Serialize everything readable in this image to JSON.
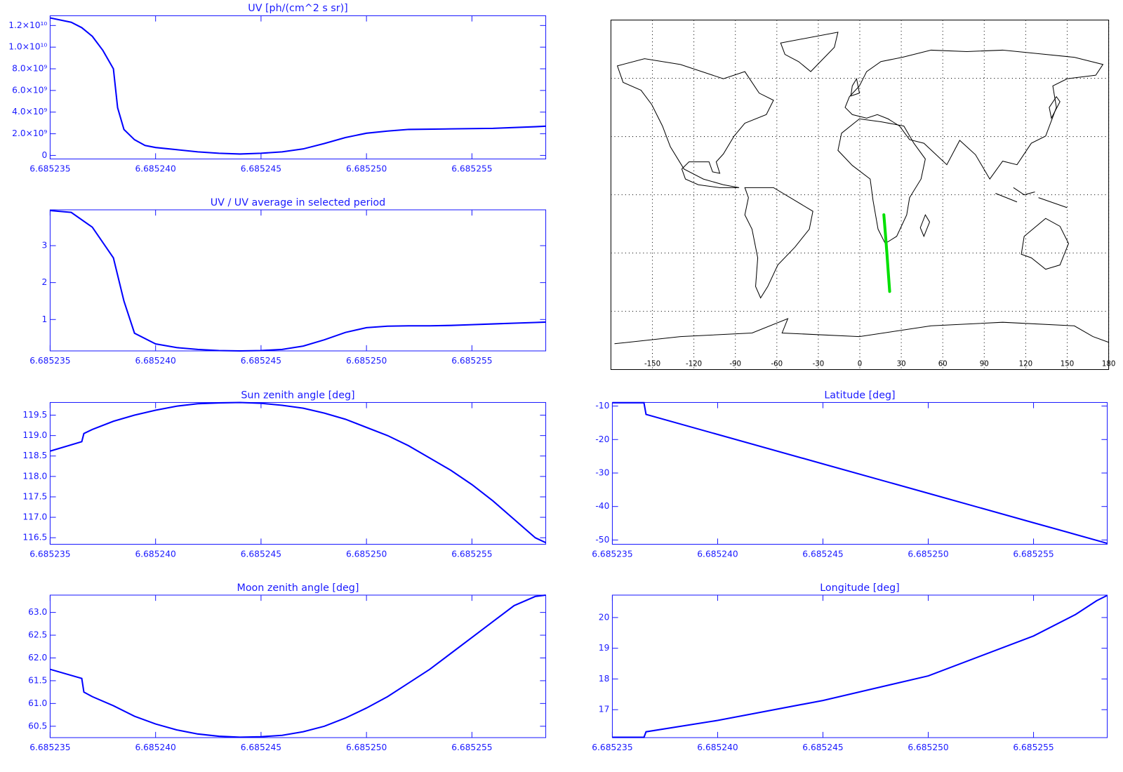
{
  "chart_data": [
    {
      "type": "line",
      "title": "UV [ph/(cm^2 s sr)]",
      "color": "#0000ff",
      "x": [
        6.685235,
        6.6852355,
        6.685236,
        6.6852365,
        6.685237,
        6.6852375,
        6.685238,
        6.6852382,
        6.6852385,
        6.685239,
        6.6852395,
        6.68524,
        6.685241,
        6.685242,
        6.685243,
        6.685244,
        6.685245,
        6.685246,
        6.685247,
        6.685248,
        6.685249,
        6.68525,
        6.685251,
        6.685252,
        6.685254,
        6.685256,
        6.685258,
        6.6852585
      ],
      "values": [
        12700000000.0,
        12500000000.0,
        12300000000.0,
        11800000000.0,
        11000000000.0,
        9700000000.0,
        8000000000.0,
        4400000000.0,
        2400000000.0,
        1450000000.0,
        920000000.0,
        730000000.0,
        530000000.0,
        330000000.0,
        200000000.0,
        130000000.0,
        200000000.0,
        330000000.0,
        600000000.0,
        1100000000.0,
        1650000000.0,
        2050000000.0,
        2250000000.0,
        2400000000.0,
        2450000000.0,
        2500000000.0,
        2650000000.0,
        2700000000.0
      ],
      "xlim": [
        6.685235,
        6.6852585
      ],
      "ylim": [
        -330000000.0,
        12900000000.0
      ],
      "xticks": [
        6.685235,
        {
          "value": 6.68524,
          "label": "6.685240"
        },
        6.685245,
        {
          "value": 6.68525,
          "label": "6.685250"
        },
        6.685255
      ],
      "yticks": [
        0,
        {
          "value": 2000000000.0,
          "label": "2.0×10⁹"
        },
        {
          "value": 4000000000.0,
          "label": "4.0×10⁹"
        },
        {
          "value": 6000000000.0,
          "label": "6.0×10⁹"
        },
        {
          "value": 8000000000.0,
          "label": "8.0×10⁹"
        },
        {
          "value": 10000000000.0,
          "label": "1.0×10¹⁰"
        },
        {
          "value": 12000000000.0,
          "label": "1.2×10¹⁰"
        }
      ]
    },
    {
      "type": "line",
      "title": "UV / UV average in selected period",
      "color": "#0000ff",
      "x": [
        6.685235,
        6.685236,
        6.685237,
        6.685238,
        6.6852385,
        6.685239,
        6.68524,
        6.685241,
        6.685242,
        6.685243,
        6.685244,
        6.685245,
        6.685246,
        6.685247,
        6.685248,
        6.685249,
        6.68525,
        6.685251,
        6.685252,
        6.685253,
        6.685254,
        6.685255,
        6.685256,
        6.685257,
        6.685258,
        6.6852585
      ],
      "values": [
        3.95,
        3.9,
        3.5,
        2.67,
        1.5,
        0.63,
        0.34,
        0.24,
        0.19,
        0.16,
        0.15,
        0.16,
        0.19,
        0.28,
        0.45,
        0.65,
        0.78,
        0.82,
        0.83,
        0.83,
        0.84,
        0.86,
        0.88,
        0.9,
        0.92,
        0.93
      ],
      "xlim": [
        6.685235,
        6.6852585
      ],
      "ylim": [
        0.15,
        3.97
      ],
      "xticks": [
        6.685235,
        {
          "value": 6.68524,
          "label": "6.685240"
        },
        6.685245,
        {
          "value": 6.68525,
          "label": "6.685250"
        },
        6.685255
      ],
      "yticks": [
        1,
        2,
        3
      ]
    },
    {
      "type": "line",
      "title": "Sun zenith angle [deg]",
      "color": "#0000ff",
      "x": [
        6.685235,
        6.6852365,
        6.6852366,
        6.685237,
        6.685238,
        6.685239,
        6.68524,
        6.685241,
        6.685242,
        6.685243,
        6.685244,
        6.685245,
        6.685246,
        6.685247,
        6.685248,
        6.685249,
        6.68525,
        6.685251,
        6.685252,
        6.685253,
        6.685254,
        6.685255,
        6.685256,
        6.685257,
        6.685258,
        6.6852585
      ],
      "values": [
        118.62,
        118.85,
        119.05,
        119.15,
        119.35,
        119.5,
        119.62,
        119.72,
        119.78,
        119.8,
        119.81,
        119.79,
        119.74,
        119.67,
        119.55,
        119.4,
        119.2,
        119.0,
        118.75,
        118.45,
        118.15,
        117.8,
        117.4,
        116.95,
        116.5,
        116.38
      ],
      "xlim": [
        6.685235,
        6.6852585
      ],
      "ylim": [
        116.34,
        119.81
      ],
      "xticks": [
        6.685235,
        {
          "value": 6.68524,
          "label": "6.685240"
        },
        6.685245,
        {
          "value": 6.68525,
          "label": "6.685250"
        },
        6.685255
      ],
      "yticks": [
        116.5,
        {
          "value": 117,
          "label": "117.0"
        },
        117.5,
        {
          "value": 118,
          "label": "118.0"
        },
        118.5,
        {
          "value": 119,
          "label": "119.0"
        },
        119.5
      ]
    },
    {
      "type": "line",
      "title": "Moon zenith angle [deg]",
      "color": "#0000ff",
      "x": [
        6.685235,
        6.6852365,
        6.6852366,
        6.685237,
        6.685238,
        6.685239,
        6.68524,
        6.685241,
        6.685242,
        6.685243,
        6.685244,
        6.685245,
        6.685246,
        6.685247,
        6.685248,
        6.685249,
        6.68525,
        6.685251,
        6.685252,
        6.685253,
        6.685254,
        6.685255,
        6.685256,
        6.685257,
        6.685258,
        6.6852585
      ],
      "values": [
        61.75,
        61.55,
        61.25,
        61.15,
        60.95,
        60.72,
        60.55,
        60.42,
        60.33,
        60.28,
        60.26,
        60.27,
        60.3,
        60.38,
        60.5,
        60.68,
        60.9,
        61.15,
        61.45,
        61.75,
        62.1,
        62.45,
        62.8,
        63.15,
        63.35,
        63.38
      ],
      "xlim": [
        6.685235,
        6.6852585
      ],
      "ylim": [
        60.25,
        63.38
      ],
      "xticks": [
        6.685235,
        {
          "value": 6.68524,
          "label": "6.685240"
        },
        6.685245,
        {
          "value": 6.68525,
          "label": "6.685250"
        },
        6.685255
      ],
      "yticks": [
        60.5,
        {
          "value": 61,
          "label": "61.0"
        },
        61.5,
        {
          "value": 62,
          "label": "62.0"
        },
        62.5,
        {
          "value": 63,
          "label": "63.0"
        }
      ]
    },
    {
      "type": "line",
      "title": "Latitude [deg]",
      "color": "#0000ff",
      "x": [
        6.685235,
        6.6852365,
        6.6852366,
        6.68524,
        6.685245,
        6.68525,
        6.685255,
        6.6852585
      ],
      "values": [
        -9,
        -9,
        -12.5,
        -18.48,
        -27.27,
        -36.06,
        -44.85,
        -51
      ],
      "xlim": [
        6.685235,
        6.6852585
      ],
      "ylim": [
        -51.28,
        -8.93
      ],
      "xticks": [
        6.685235,
        {
          "value": 6.68524,
          "label": "6.685240"
        },
        6.685245,
        {
          "value": 6.68525,
          "label": "6.685250"
        },
        6.685255
      ],
      "yticks": [
        -50,
        -40,
        -30,
        -20,
        -10
      ]
    },
    {
      "type": "line",
      "title": "Longitude [deg]",
      "color": "#0000ff",
      "x": [
        6.685235,
        6.6852365,
        6.6852366,
        6.68524,
        6.685245,
        6.68525,
        6.685255,
        6.685257,
        6.685258,
        6.6852585
      ],
      "values": [
        16.1,
        16.1,
        16.28,
        16.65,
        17.3,
        18.1,
        19.4,
        20.1,
        20.55,
        20.72
      ],
      "xlim": [
        6.685235,
        6.6852585
      ],
      "ylim": [
        16.09,
        20.73
      ],
      "xticks": [
        6.685235,
        {
          "value": 6.68524,
          "label": "6.685240"
        },
        6.685245,
        {
          "value": 6.68525,
          "label": "6.685250"
        },
        6.685255
      ],
      "yticks": [
        17,
        18,
        19,
        20
      ]
    },
    {
      "type": "map",
      "xlim": [
        -180,
        180
      ],
      "ylim": [
        -90,
        90
      ],
      "xticks": [
        -150,
        -120,
        -90,
        -60,
        -30,
        0,
        30,
        60,
        90,
        120,
        150,
        180
      ],
      "yticks": [
        -60,
        -30,
        0,
        30,
        60
      ],
      "grid": true,
      "series": [
        {
          "color": "#00e000",
          "x": [
            17.4,
            18.5,
            19.6,
            20.6,
            21.6
          ],
          "y": [
            -10.3,
            -20,
            -30,
            -40,
            -49.8
          ]
        }
      ]
    }
  ]
}
